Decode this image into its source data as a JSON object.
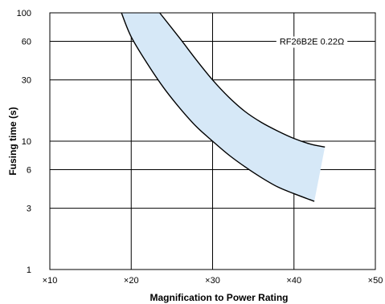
{
  "chart_data": {
    "type": "area",
    "xlabel": "Magnification to Power Rating",
    "ylabel": "Fusing time (s)",
    "y_scale": "log",
    "xlim": [
      10,
      50
    ],
    "ylim": [
      1,
      100
    ],
    "x_ticks": [
      {
        "value": 10,
        "label": "×10"
      },
      {
        "value": 20,
        "label": "×20"
      },
      {
        "value": 30,
        "label": "×30"
      },
      {
        "value": 40,
        "label": "×40"
      },
      {
        "value": 50,
        "label": "×50"
      }
    ],
    "y_ticks": [
      {
        "value": 1,
        "label": "1"
      },
      {
        "value": 3,
        "label": "3"
      },
      {
        "value": 6,
        "label": "6"
      },
      {
        "value": 10,
        "label": "10"
      },
      {
        "value": 30,
        "label": "30"
      },
      {
        "value": 60,
        "label": "60"
      },
      {
        "value": 100,
        "label": "100"
      }
    ],
    "grid": true,
    "series": [
      {
        "name": "",
        "role": "upper",
        "x": [
          23.5,
          26,
          28,
          30,
          32,
          34,
          36,
          38,
          40,
          42,
          43.8
        ],
        "y": [
          100,
          63,
          43,
          30,
          22,
          17,
          14,
          12,
          10.5,
          9.5,
          9
        ]
      },
      {
        "name": "",
        "role": "lower",
        "x": [
          18.8,
          20,
          22,
          24,
          26,
          28,
          30,
          32,
          34,
          36,
          38,
          40,
          42.5
        ],
        "y": [
          100,
          65,
          40,
          26,
          18,
          13,
          10,
          7.8,
          6.3,
          5.2,
          4.4,
          3.9,
          3.4
        ]
      }
    ],
    "band_fill": "#d6e8f7",
    "annotation": "RF26B2E 0.22Ω"
  }
}
